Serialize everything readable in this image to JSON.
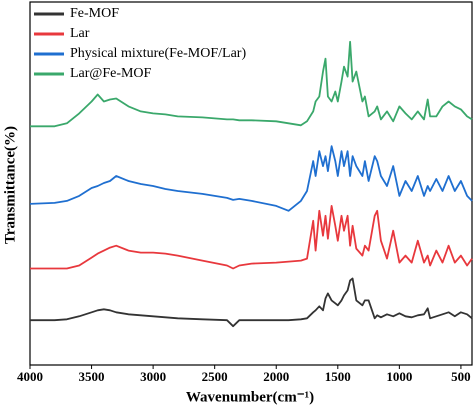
{
  "chart_data": {
    "type": "line",
    "xlabel": "Wavenumber(cm⁻¹)",
    "ylabel": "Transmittance(%)",
    "x": [
      4000,
      3800,
      3700,
      3600,
      3500,
      3450,
      3400,
      3350,
      3300,
      3200,
      3100,
      3000,
      2900,
      2800,
      2600,
      2400,
      2350,
      2300,
      2200,
      2000,
      1900,
      1800,
      1750,
      1700,
      1680,
      1650,
      1620,
      1600,
      1580,
      1550,
      1520,
      1500,
      1470,
      1450,
      1420,
      1400,
      1380,
      1350,
      1300,
      1280,
      1250,
      1200,
      1180,
      1150,
      1100,
      1050,
      1000,
      950,
      900,
      850,
      800,
      770,
      750,
      700,
      650,
      600,
      550,
      500,
      450,
      410
    ],
    "series": [
      {
        "name": "Fe-MOF",
        "color": "#333333",
        "values": [
          45,
          45,
          46,
          49,
          53,
          55,
          56,
          55,
          53,
          51,
          50,
          49,
          48,
          47,
          46,
          45,
          39,
          45,
          45,
          45,
          45,
          46,
          47,
          53,
          55,
          59,
          55,
          67,
          72,
          65,
          62,
          60,
          65,
          70,
          75,
          85,
          87,
          65,
          60,
          65,
          65,
          47,
          50,
          48,
          51,
          49,
          52,
          49,
          48,
          50,
          51,
          57,
          47,
          49,
          51,
          53,
          49,
          53,
          51,
          47
        ]
      },
      {
        "name": "Lar",
        "color": "#e8383d",
        "values": [
          97,
          97,
          97,
          100,
          108,
          112,
          115,
          118,
          120,
          115,
          113,
          113,
          112,
          110,
          105,
          100,
          97,
          100,
          102,
          103,
          104,
          105,
          107,
          145,
          115,
          155,
          130,
          150,
          127,
          160,
          140,
          125,
          150,
          135,
          150,
          120,
          140,
          117,
          110,
          120,
          115,
          150,
          155,
          125,
          107,
          135,
          103,
          110,
          103,
          125,
          103,
          110,
          100,
          115,
          103,
          120,
          103,
          110,
          100,
          107
        ]
      },
      {
        "name": "Physical mixture(Fe-MOF/Lar)",
        "color": "#1f6fd0",
        "values": [
          162,
          163,
          165,
          170,
          178,
          180,
          183,
          185,
          190,
          185,
          182,
          180,
          177,
          175,
          172,
          168,
          166,
          167,
          165,
          160,
          155,
          165,
          175,
          205,
          190,
          215,
          200,
          210,
          195,
          220,
          205,
          190,
          215,
          200,
          215,
          190,
          210,
          200,
          190,
          205,
          185,
          210,
          205,
          190,
          180,
          200,
          170,
          185,
          175,
          190,
          170,
          180,
          175,
          187,
          175,
          190,
          175,
          185,
          170,
          165
        ]
      },
      {
        "name": "Lar@Fe-MOF",
        "color": "#3aa86b",
        "values": [
          240,
          240,
          243,
          253,
          265,
          272,
          265,
          267,
          268,
          260,
          255,
          253,
          252,
          250,
          249,
          247,
          247,
          246,
          246,
          245,
          243,
          241,
          245,
          255,
          265,
          270,
          295,
          308,
          270,
          265,
          275,
          265,
          285,
          300,
          290,
          325,
          285,
          295,
          265,
          270,
          250,
          255,
          260,
          247,
          255,
          245,
          260,
          253,
          247,
          255,
          247,
          267,
          250,
          250,
          260,
          265,
          260,
          257,
          250,
          247
        ]
      }
    ],
    "xlim": [
      4000,
      410
    ],
    "xticks": [
      4000,
      3500,
      3000,
      2500,
      2000,
      1500,
      1000,
      500
    ],
    "ylim": [
      0,
      365
    ],
    "legend": "upper left"
  }
}
